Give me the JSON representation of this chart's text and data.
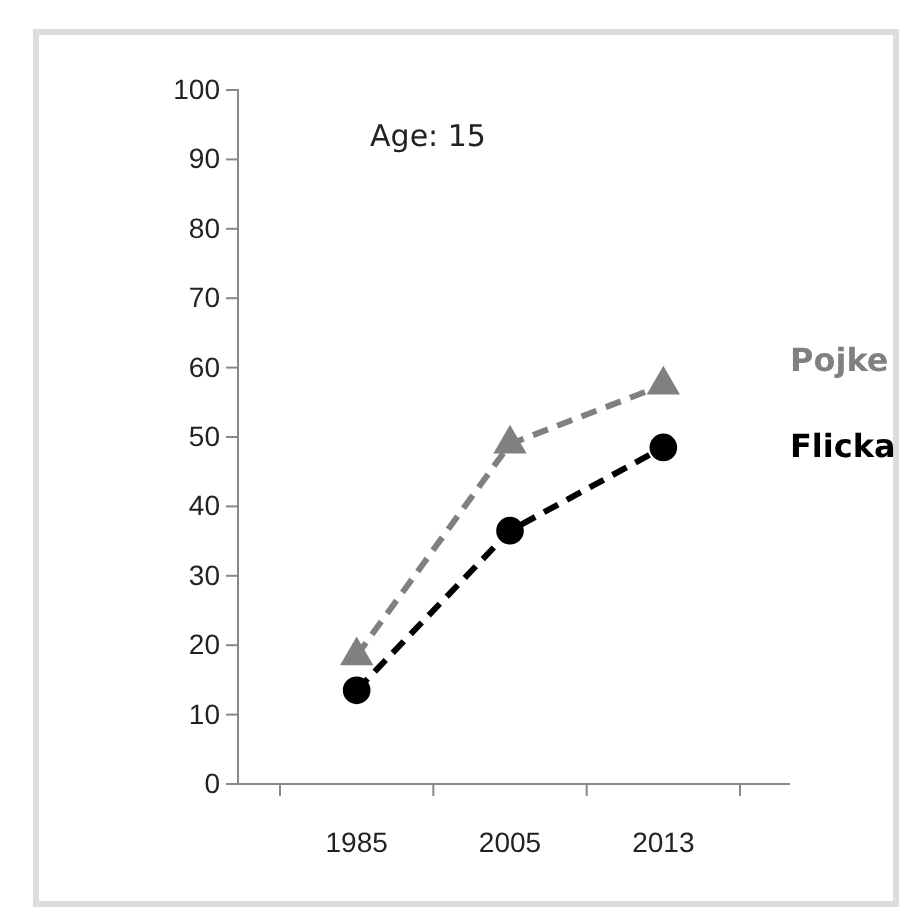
{
  "chart_data": {
    "type": "line",
    "title": "Age: 15",
    "categories": [
      "1985",
      "2005",
      "2013"
    ],
    "series": [
      {
        "name": "Pojke",
        "color": "#808080",
        "values": [
          18.5,
          49,
          57.5
        ],
        "marker": "triangle"
      },
      {
        "name": "Flicka",
        "color": "#000000",
        "values": [
          13.5,
          36.5,
          48.5
        ],
        "marker": "circle"
      }
    ],
    "ylim": [
      0,
      100
    ],
    "yticks": [
      0,
      10,
      20,
      30,
      40,
      50,
      60,
      70,
      80,
      90,
      100
    ],
    "line_style": "dashed",
    "grid": false,
    "legend": "right"
  }
}
